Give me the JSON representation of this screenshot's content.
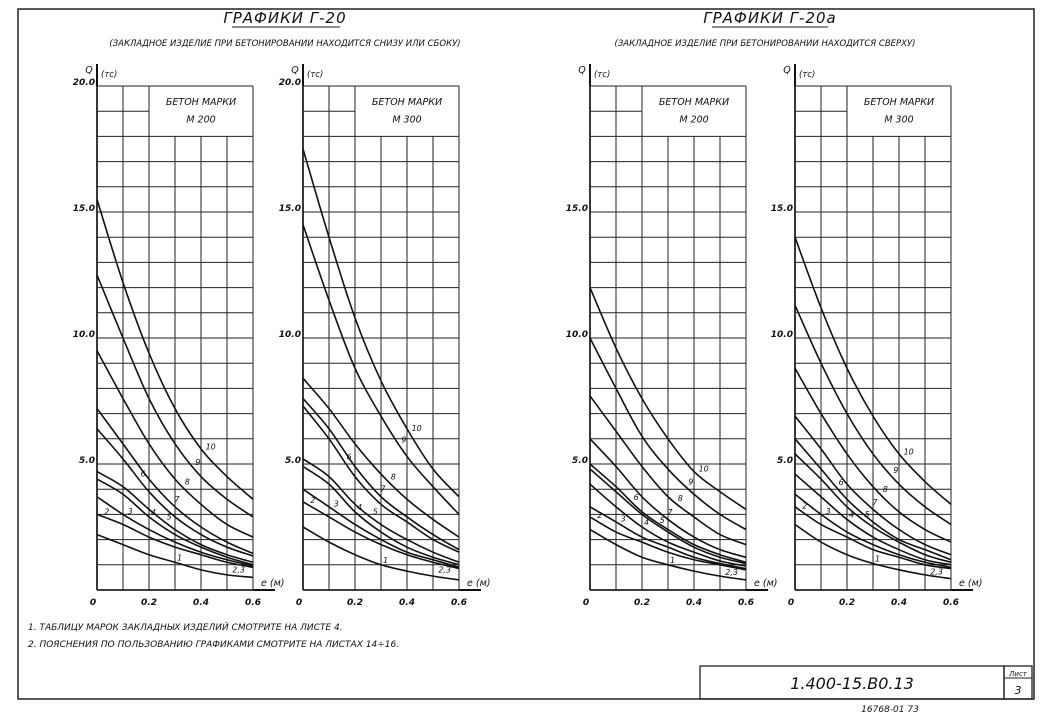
{
  "groups": [
    {
      "title": "ГРАФИКИ Г-20",
      "subtitle": "(ЗАКЛАДНОЕ ИЗДЕЛИЕ ПРИ БЕТОНИРОВАНИИ НАХОДИТСЯ СНИЗУ ИЛИ СБОКУ)"
    },
    {
      "title": "ГРАФИКИ Г-20а",
      "subtitle": "(ЗАКЛАДНОЕ ИЗДЕЛИЕ ПРИ БЕТОНИРОВАНИИ НАХОДИТСЯ СВЕРХУ)"
    }
  ],
  "notes": [
    "1. ТАБЛИЦУ МАРОК ЗАКЛАДНЫХ ИЗДЕЛИЙ СМОТРИТЕ НА ЛИСТЕ 4.",
    "2. ПОЯСНЕНИЯ ПО ПОЛЬЗОВАНИЮ ГРАФИКАМИ СМОТРИТЕ НА ЛИСТАХ 14÷16."
  ],
  "title_block": {
    "code": "1.400-15.В0.13",
    "sheet_label": "Лист",
    "sheet": "3",
    "archive": "16768-01   73"
  },
  "chart_data": [
    {
      "type": "line",
      "group": 0,
      "panel_title": "БЕТОН МАРКИ",
      "panel_grade": "М 200",
      "ylabel": "Q",
      "yunit": "(тс)",
      "xlabel": "e (м)",
      "xlim": [
        0,
        0.6
      ],
      "ylim": [
        0,
        20
      ],
      "grid": true,
      "xticks": [
        "0",
        "0.2",
        "0.4",
        "0.6"
      ],
      "yticks": [
        "5.0",
        "10.0",
        "15.0",
        "20.0"
      ],
      "x": [
        0,
        0.1,
        0.2,
        0.3,
        0.4,
        0.5,
        0.6
      ],
      "merged_label": "2,3",
      "series": [
        {
          "name": "1",
          "values": [
            2.2,
            1.8,
            1.4,
            1.1,
            0.8,
            0.6,
            0.5
          ]
        },
        {
          "name": "2",
          "values": [
            3.0,
            2.6,
            2.1,
            1.7,
            1.4,
            1.1,
            0.9
          ]
        },
        {
          "name": "3",
          "values": [
            3.7,
            3.0,
            2.4,
            1.9,
            1.5,
            1.2,
            0.95
          ]
        },
        {
          "name": "4",
          "values": [
            4.4,
            3.8,
            2.9,
            2.2,
            1.7,
            1.3,
            1.0
          ]
        },
        {
          "name": "5",
          "values": [
            4.7,
            4.1,
            3.2,
            2.4,
            1.8,
            1.4,
            1.1
          ]
        },
        {
          "name": "6",
          "values": [
            6.4,
            5.2,
            3.9,
            2.9,
            2.2,
            1.7,
            1.35
          ]
        },
        {
          "name": "7",
          "values": [
            7.2,
            5.8,
            4.4,
            3.3,
            2.5,
            1.9,
            1.45
          ]
        },
        {
          "name": "8",
          "values": [
            9.5,
            7.6,
            5.8,
            4.4,
            3.4,
            2.6,
            2.1
          ]
        },
        {
          "name": "9",
          "values": [
            12.5,
            10.0,
            7.6,
            5.8,
            4.5,
            3.6,
            2.9
          ]
        },
        {
          "name": "10",
          "values": [
            15.5,
            12.2,
            9.4,
            7.2,
            5.6,
            4.5,
            3.6
          ]
        }
      ]
    },
    {
      "type": "line",
      "group": 0,
      "panel_title": "БЕТОН МАРКИ",
      "panel_grade": "М 300",
      "ylabel": "Q",
      "yunit": "(тс)",
      "xlabel": "e (м)",
      "xlim": [
        0,
        0.6
      ],
      "ylim": [
        0,
        20
      ],
      "grid": true,
      "xticks": [
        "0",
        "0.2",
        "0.4",
        "0.6"
      ],
      "yticks": [
        "5.0",
        "10.0",
        "15.0",
        "20.0"
      ],
      "x": [
        0,
        0.1,
        0.2,
        0.3,
        0.4,
        0.5,
        0.6
      ],
      "merged_label": "2,3",
      "series": [
        {
          "name": "1",
          "values": [
            2.5,
            1.9,
            1.4,
            1.0,
            0.75,
            0.55,
            0.4
          ]
        },
        {
          "name": "2",
          "values": [
            3.5,
            2.9,
            2.3,
            1.8,
            1.4,
            1.1,
            0.85
          ]
        },
        {
          "name": "3",
          "values": [
            4.0,
            3.3,
            2.6,
            2.0,
            1.5,
            1.2,
            0.9
          ]
        },
        {
          "name": "4",
          "values": [
            4.9,
            4.2,
            3.1,
            2.3,
            1.7,
            1.3,
            1.0
          ]
        },
        {
          "name": "5",
          "values": [
            5.2,
            4.5,
            3.4,
            2.6,
            2.0,
            1.5,
            1.1
          ]
        },
        {
          "name": "6",
          "values": [
            7.3,
            6.0,
            4.5,
            3.4,
            2.7,
            2.0,
            1.5
          ]
        },
        {
          "name": "7",
          "values": [
            7.6,
            6.4,
            4.9,
            3.7,
            2.9,
            2.2,
            1.6
          ]
        },
        {
          "name": "8",
          "values": [
            8.4,
            7.2,
            5.8,
            4.6,
            3.6,
            2.8,
            2.1
          ]
        },
        {
          "name": "9",
          "values": [
            14.5,
            11.5,
            8.8,
            6.9,
            5.3,
            4.1,
            3.0
          ]
        },
        {
          "name": "10",
          "values": [
            17.5,
            14.0,
            10.8,
            8.3,
            6.4,
            4.8,
            3.7
          ]
        }
      ]
    },
    {
      "type": "line",
      "group": 1,
      "panel_title": "БЕТОН МАРКИ",
      "panel_grade": "М 200",
      "ylabel": "Q",
      "yunit": "(тс)",
      "xlabel": "e (м)",
      "xlim": [
        0,
        0.6
      ],
      "ylim": [
        0,
        20
      ],
      "grid": true,
      "xticks": [
        "0",
        "0.2",
        "0.4",
        "0.6"
      ],
      "yticks": [
        "5.0",
        "10.0",
        "15.0"
      ],
      "x": [
        0,
        0.1,
        0.2,
        0.3,
        0.4,
        0.5,
        0.6
      ],
      "merged_label": "2,3",
      "series": [
        {
          "name": "1",
          "values": [
            2.4,
            1.8,
            1.3,
            1.0,
            0.75,
            0.55,
            0.4
          ]
        },
        {
          "name": "2",
          "values": [
            2.9,
            2.3,
            1.9,
            1.5,
            1.2,
            1.0,
            0.8
          ]
        },
        {
          "name": "3",
          "values": [
            3.3,
            2.7,
            2.1,
            1.7,
            1.3,
            1.05,
            0.85
          ]
        },
        {
          "name": "4",
          "values": [
            4.2,
            3.3,
            2.5,
            1.9,
            1.5,
            1.15,
            0.95
          ]
        },
        {
          "name": "5",
          "values": [
            4.8,
            3.9,
            3.0,
            2.3,
            1.7,
            1.3,
            1.05
          ]
        },
        {
          "name": "6",
          "values": [
            5.0,
            4.1,
            3.1,
            2.4,
            1.8,
            1.4,
            1.1
          ]
        },
        {
          "name": "7",
          "values": [
            6.0,
            4.9,
            3.7,
            2.8,
            2.1,
            1.6,
            1.3
          ]
        },
        {
          "name": "8",
          "values": [
            7.7,
            6.3,
            4.9,
            3.7,
            2.9,
            2.2,
            1.8
          ]
        },
        {
          "name": "9",
          "values": [
            10.0,
            8.0,
            6.1,
            4.8,
            3.8,
            3.0,
            2.4
          ]
        },
        {
          "name": "10",
          "values": [
            12.0,
            9.6,
            7.6,
            6.0,
            4.7,
            3.9,
            3.2
          ]
        }
      ]
    },
    {
      "type": "line",
      "group": 1,
      "panel_title": "БЕТОН МАРКИ",
      "panel_grade": "М 300",
      "ylabel": "Q",
      "yunit": "(тс)",
      "xlabel": "e (м)",
      "xlim": [
        0,
        0.6
      ],
      "ylim": [
        0,
        20
      ],
      "grid": true,
      "xticks": [
        "0",
        "0.2",
        "0.4",
        "0.6"
      ],
      "yticks": [
        "5.0",
        "10.0",
        "15.0"
      ],
      "x": [
        0,
        0.1,
        0.2,
        0.3,
        0.4,
        0.5,
        0.6
      ],
      "merged_label": "2,3",
      "series": [
        {
          "name": "1",
          "values": [
            2.6,
            1.9,
            1.4,
            1.05,
            0.8,
            0.6,
            0.45
          ]
        },
        {
          "name": "2",
          "values": [
            3.3,
            2.6,
            2.1,
            1.6,
            1.3,
            1.0,
            0.85
          ]
        },
        {
          "name": "3",
          "values": [
            3.8,
            3.0,
            2.3,
            1.8,
            1.4,
            1.1,
            0.9
          ]
        },
        {
          "name": "4",
          "values": [
            4.6,
            3.7,
            2.8,
            2.1,
            1.6,
            1.2,
            1.0
          ]
        },
        {
          "name": "5",
          "values": [
            5.4,
            4.4,
            3.3,
            2.5,
            1.9,
            1.4,
            1.1
          ]
        },
        {
          "name": "6",
          "values": [
            6.0,
            4.8,
            3.6,
            2.7,
            2.0,
            1.6,
            1.2
          ]
        },
        {
          "name": "7",
          "values": [
            6.9,
            5.6,
            4.2,
            3.2,
            2.4,
            1.8,
            1.4
          ]
        },
        {
          "name": "8",
          "values": [
            8.8,
            7.0,
            5.4,
            4.1,
            3.1,
            2.4,
            1.9
          ]
        },
        {
          "name": "9",
          "values": [
            11.3,
            9.0,
            7.0,
            5.4,
            4.2,
            3.3,
            2.6
          ]
        },
        {
          "name": "10",
          "values": [
            14.0,
            11.2,
            8.8,
            6.9,
            5.4,
            4.3,
            3.4
          ]
        }
      ]
    }
  ]
}
